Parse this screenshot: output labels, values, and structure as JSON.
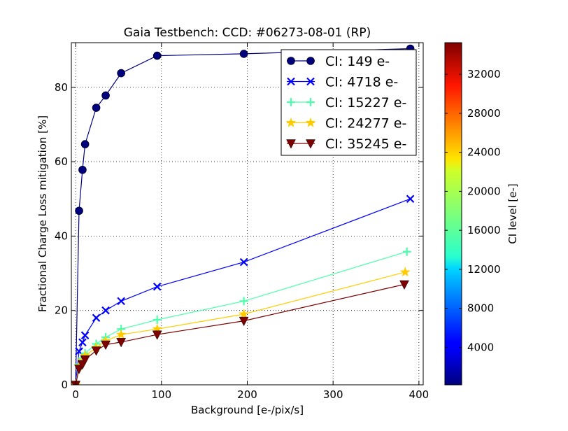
{
  "chart_data": {
    "type": "line",
    "title": "Gaia Testbench: CCD: #06273-08-01 (RP)",
    "xlabel": "Background [e-/pix/s]",
    "ylabel": "Fractional Charge Loss mitigation [%]",
    "xlim": [
      -5,
      405
    ],
    "ylim": [
      0,
      92
    ],
    "xticks": [
      0,
      100,
      200,
      300,
      400
    ],
    "xtick_labels": [
      "0",
      "100",
      "200",
      "300",
      "400"
    ],
    "yticks": [
      0,
      20,
      40,
      60,
      80
    ],
    "ytick_labels": [
      "0",
      "20",
      "40",
      "60",
      "80"
    ],
    "grid": true,
    "legend_position": "top-right",
    "series": [
      {
        "name": "CI: 149 e-",
        "color": "#00007f",
        "marker": "circle",
        "x": [
          0,
          4,
          8,
          11,
          24,
          35,
          53,
          95,
          196,
          390
        ],
        "y": [
          0,
          46.8,
          57.8,
          64.7,
          74.5,
          77.8,
          83.8,
          88.5,
          89.0,
          90.4
        ]
      },
      {
        "name": "CI: 4718 e-",
        "color": "#0000ff",
        "marker": "x",
        "x": [
          0,
          4,
          8,
          11,
          24,
          35,
          53,
          95,
          196,
          390
        ],
        "y": [
          0,
          9.0,
          11.4,
          13.3,
          18.0,
          20.0,
          22.5,
          26.4,
          33.0,
          50.0
        ]
      },
      {
        "name": "CI: 15227 e-",
        "color": "#4cffaa",
        "marker": "plus",
        "x": [
          0,
          4,
          8,
          11,
          24,
          35,
          53,
          95,
          196,
          386
        ],
        "y": [
          0,
          5.5,
          7.2,
          8.5,
          11.0,
          12.8,
          15.0,
          17.5,
          22.5,
          35.8
        ]
      },
      {
        "name": "CI: 24277 e-",
        "color": "#ffcc00",
        "marker": "star",
        "x": [
          0,
          4,
          8,
          11,
          24,
          35,
          53,
          95,
          196,
          384
        ],
        "y": [
          0,
          5.0,
          6.5,
          7.8,
          10.0,
          11.8,
          13.5,
          15.0,
          19.0,
          30.3
        ]
      },
      {
        "name": "CI: 35245 e-",
        "color": "#7f0000",
        "marker": "triangle-down",
        "x": [
          0,
          4,
          8,
          11,
          24,
          35,
          53,
          95,
          196,
          383
        ],
        "y": [
          0,
          4.3,
          5.5,
          6.8,
          9.2,
          10.8,
          11.5,
          13.5,
          17.2,
          27.0
        ]
      }
    ],
    "colorbar": {
      "label": "CI level [e-]",
      "range": [
        149,
        35245
      ],
      "ticks": [
        4000,
        8000,
        12000,
        16000,
        20000,
        24000,
        28000,
        32000
      ],
      "tick_labels": [
        "4000",
        "8000",
        "12000",
        "16000",
        "20000",
        "24000",
        "28000",
        "32000"
      ]
    }
  }
}
